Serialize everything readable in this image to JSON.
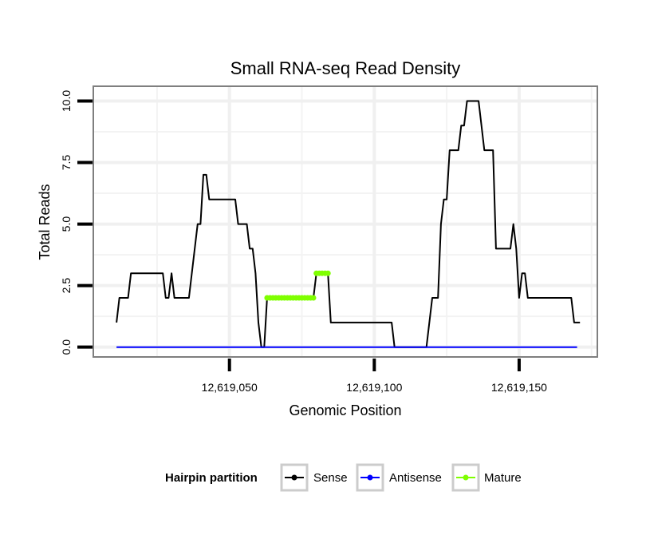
{
  "chart_data": {
    "type": "line",
    "title": "Small RNA-seq Read Density",
    "xlabel": "Genomic Position",
    "ylabel": "Total Reads",
    "xlim": [
      12619003,
      12619177
    ],
    "ylim": [
      -0.4,
      10.6
    ],
    "x_ticks": [
      12619050,
      12619100,
      12619150
    ],
    "x_tick_labels": [
      "12,619,050",
      "12,619,100",
      "12,619,150"
    ],
    "y_ticks": [
      0,
      2.5,
      5,
      7.5,
      10
    ],
    "y_tick_labels": [
      "0.0",
      "2.5",
      "5.0",
      "7.5",
      "10.0"
    ],
    "legend": {
      "title": "Hairpin partition",
      "position": "bottom",
      "entries": [
        {
          "name": "Sense",
          "color": "#000000"
        },
        {
          "name": "Antisense",
          "color": "#0000ff"
        },
        {
          "name": "Mature",
          "color": "#7fff00"
        }
      ]
    },
    "series": [
      {
        "name": "Sense",
        "color": "#000000",
        "points": [
          [
            12619011,
            1
          ],
          [
            12619012,
            2
          ],
          [
            12619015,
            2
          ],
          [
            12619016,
            3
          ],
          [
            12619027,
            3
          ],
          [
            12619028,
            2
          ],
          [
            12619029,
            2
          ],
          [
            12619030,
            3
          ],
          [
            12619031,
            2
          ],
          [
            12619036,
            2
          ],
          [
            12619039,
            5
          ],
          [
            12619040,
            5
          ],
          [
            12619041,
            7
          ],
          [
            12619042,
            7
          ],
          [
            12619043,
            6
          ],
          [
            12619052,
            6
          ],
          [
            12619053,
            5
          ],
          [
            12619056,
            5
          ],
          [
            12619057,
            4
          ],
          [
            12619058,
            4
          ],
          [
            12619059,
            3
          ],
          [
            12619060,
            1
          ],
          [
            12619061,
            0
          ],
          [
            12619062,
            0
          ],
          [
            12619063,
            2
          ],
          [
            12619079,
            2
          ],
          [
            12619080,
            3
          ],
          [
            12619084,
            3
          ],
          [
            12619085,
            1
          ],
          [
            12619106,
            1
          ],
          [
            12619107,
            0
          ],
          [
            12619118,
            0
          ],
          [
            12619120,
            2
          ],
          [
            12619122,
            2
          ],
          [
            12619123,
            5
          ],
          [
            12619124,
            6
          ],
          [
            12619125,
            6
          ],
          [
            12619126,
            8
          ],
          [
            12619129,
            8
          ],
          [
            12619130,
            9
          ],
          [
            12619131,
            9
          ],
          [
            12619132,
            10
          ],
          [
            12619136,
            10
          ],
          [
            12619138,
            8
          ],
          [
            12619141,
            8
          ],
          [
            12619142,
            4
          ],
          [
            12619147,
            4
          ],
          [
            12619148,
            5
          ],
          [
            12619149,
            4
          ],
          [
            12619150,
            2
          ],
          [
            12619151,
            3
          ],
          [
            12619152,
            3
          ],
          [
            12619153,
            2
          ],
          [
            12619168,
            2
          ],
          [
            12619169,
            1
          ],
          [
            12619171,
            1
          ]
        ]
      },
      {
        "name": "Antisense",
        "color": "#0000ff",
        "points": [
          [
            12619011,
            0
          ],
          [
            12619170,
            0
          ]
        ]
      },
      {
        "name": "Mature",
        "color": "#7fff00",
        "segments": [
          {
            "x": [
              12619063,
              12619064,
              12619065,
              12619066,
              12619067,
              12619068,
              12619069,
              12619070,
              12619071,
              12619072,
              12619073,
              12619074,
              12619075,
              12619076,
              12619077,
              12619078,
              12619079
            ],
            "y": 2
          },
          {
            "x": [
              12619080,
              12619081,
              12619082,
              12619083,
              12619084
            ],
            "y": 3
          }
        ]
      }
    ]
  }
}
